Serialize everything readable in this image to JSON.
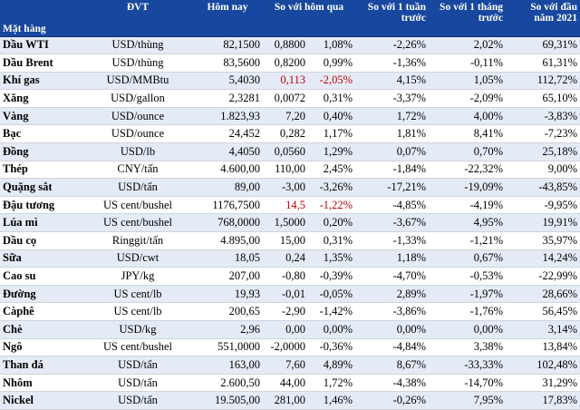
{
  "header": {
    "commodity": "Mặt hàng",
    "unit": "ĐVT",
    "today": "Hôm nay",
    "vs_yesterday": "So với hôm qua",
    "vs_week": "So với 1 tuần trước",
    "vs_month": "So với 1 tháng trước",
    "vs_year_start": "So với đầu năm 2021"
  },
  "rows": [
    {
      "name": "Dầu WTI",
      "unit": "USD/thùng",
      "today": "82,1500",
      "chg": "0,8800",
      "chg_pct": "1,08%",
      "week": "-2,26%",
      "month": "2,02%",
      "ytd": "69,31%",
      "neg": false
    },
    {
      "name": "Dầu Brent",
      "unit": "USD/thùng",
      "today": "83,5600",
      "chg": "0,8200",
      "chg_pct": "0,99%",
      "week": "-1,36%",
      "month": "-0,11%",
      "ytd": "61,31%",
      "neg": false
    },
    {
      "name": "Khí gas",
      "unit": "USD/MMBtu",
      "today": "5,4030",
      "chg": "0,113",
      "chg_pct": "-2,05%",
      "week": "4,15%",
      "month": "1,05%",
      "ytd": "112,72%",
      "neg": true
    },
    {
      "name": "Xăng",
      "unit": "USD/gallon",
      "today": "2,3281",
      "chg": "0,0072",
      "chg_pct": "0,31%",
      "week": "-3,37%",
      "month": "-2,09%",
      "ytd": "65,10%",
      "neg": false
    },
    {
      "name": "Vàng",
      "unit": "USD/ounce",
      "today": "1.823,93",
      "chg": "7,20",
      "chg_pct": "0,40%",
      "week": "1,72%",
      "month": "4,00%",
      "ytd": "-3,83%",
      "neg": false
    },
    {
      "name": "Bạc",
      "unit": "USD/ounce",
      "today": "24,452",
      "chg": "0,282",
      "chg_pct": "1,17%",
      "week": "1,81%",
      "month": "8,41%",
      "ytd": "-7,23%",
      "neg": false
    },
    {
      "name": "Đồng",
      "unit": "USD/lb",
      "today": "4,4050",
      "chg": "0,0560",
      "chg_pct": "1,29%",
      "week": "0,07%",
      "month": "0,70%",
      "ytd": "25,18%",
      "neg": false
    },
    {
      "name": "Thép",
      "unit": "CNY/tấn",
      "today": "4.600,00",
      "chg": "110,00",
      "chg_pct": "2,45%",
      "week": "-1,84%",
      "month": "-22,32%",
      "ytd": "9,00%",
      "neg": false
    },
    {
      "name": "Quặng sắt",
      "unit": "USD/tấn",
      "today": "89,00",
      "chg": "-3,00",
      "chg_pct": "-3,26%",
      "week": "-17,21%",
      "month": "-19,09%",
      "ytd": "-43,85%",
      "neg": false
    },
    {
      "name": "Đậu tương",
      "unit": "US cent/bushel",
      "today": "1176,7500",
      "chg": "14,5",
      "chg_pct": "-1,22%",
      "week": "-4,85%",
      "month": "-4,19%",
      "ytd": "-9,95%",
      "neg": true
    },
    {
      "name": "Lúa mì",
      "unit": "US cent/bushel",
      "today": "768,0000",
      "chg": "1,5000",
      "chg_pct": "0,20%",
      "week": "-3,67%",
      "month": "4,95%",
      "ytd": "19,91%",
      "neg": false
    },
    {
      "name": "Dầu cọ",
      "unit": "Ringgit/tấn",
      "today": "4.895,00",
      "chg": "15,00",
      "chg_pct": "0,31%",
      "week": "-1,33%",
      "month": "-1,21%",
      "ytd": "35,97%",
      "neg": false
    },
    {
      "name": "Sữa",
      "unit": "USD/cwt",
      "today": "18,05",
      "chg": "0,24",
      "chg_pct": "1,35%",
      "week": "1,18%",
      "month": "0,67%",
      "ytd": "14,24%",
      "neg": false
    },
    {
      "name": "Cao su",
      "unit": "JPY/kg",
      "today": "207,00",
      "chg": "-0,80",
      "chg_pct": "-0,39%",
      "week": "-4,70%",
      "month": "-0,53%",
      "ytd": "-22,99%",
      "neg": false
    },
    {
      "name": "Đường",
      "unit": "US cent/lb",
      "today": "19,93",
      "chg": "-0,01",
      "chg_pct": "-0,05%",
      "week": "2,89%",
      "month": "-1,97%",
      "ytd": "28,66%",
      "neg": false
    },
    {
      "name": "Càphê",
      "unit": "US cent/lb",
      "today": "200,65",
      "chg": "-2,90",
      "chg_pct": "-1,42%",
      "week": "-3,86%",
      "month": "-1,76%",
      "ytd": "56,45%",
      "neg": false
    },
    {
      "name": "Chè",
      "unit": "USD/kg",
      "today": "2,96",
      "chg": "0,00",
      "chg_pct": "0,00%",
      "week": "0,00%",
      "month": "0,00%",
      "ytd": "3,14%",
      "neg": false
    },
    {
      "name": "Ngô",
      "unit": "US cent/bushel",
      "today": "551,0000",
      "chg": "-2,0000",
      "chg_pct": "-0,36%",
      "week": "-4,84%",
      "month": "3,38%",
      "ytd": "13,84%",
      "neg": false
    },
    {
      "name": "Than đá",
      "unit": "USD/tấn",
      "today": "163,00",
      "chg": "7,60",
      "chg_pct": "4,89%",
      "week": "8,67%",
      "month": "-33,33%",
      "ytd": "102,48%",
      "neg": false
    },
    {
      "name": "Nhôm",
      "unit": "USD/tấn",
      "today": "2.600,50",
      "chg": "44,00",
      "chg_pct": "1,72%",
      "week": "-4,38%",
      "month": "-14,70%",
      "ytd": "31,29%",
      "neg": false
    },
    {
      "name": "Nickel",
      "unit": "USD/tấn",
      "today": "19.505,00",
      "chg": "281,00",
      "chg_pct": "1,46%",
      "week": "-0,26%",
      "month": "7,95%",
      "ytd": "17,83%",
      "neg": false
    }
  ]
}
